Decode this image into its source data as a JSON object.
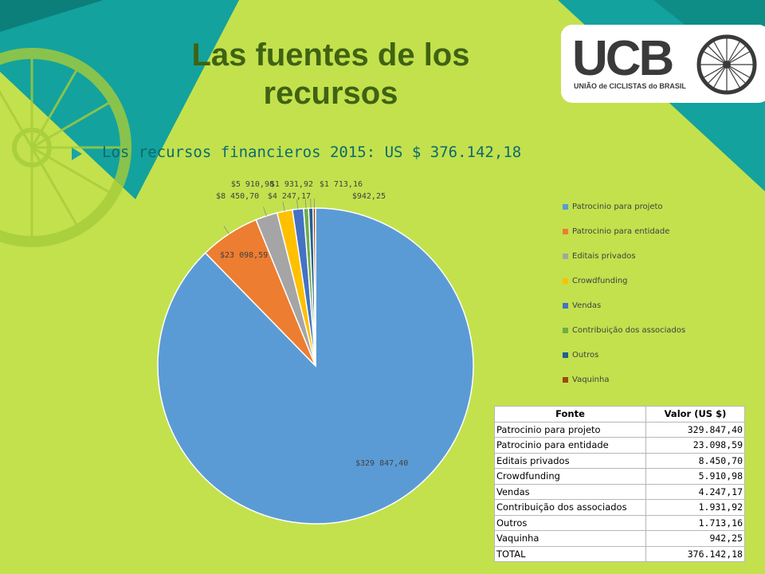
{
  "slide": {
    "title": "Las fuentes de los recursos",
    "bullet": "Los recursos financieros 2015: US $ 376.142,18"
  },
  "logo": {
    "text": "UCB",
    "subtitle": "UNIÃO de CICLISTAS do BRASIL",
    "icon": "bicycle-wheel-icon"
  },
  "colors": {
    "background": "#c3e14d",
    "teal": "#13a29e",
    "title": "#3f6212"
  },
  "chart_data": {
    "type": "pie",
    "title": "",
    "categories": [
      "Patrocinio para projeto",
      "Patrocinio para entidade",
      "Editais privados",
      "Crowdfunding",
      "Vendas",
      "Contribuição dos associados",
      "Outros",
      "Vaquinha"
    ],
    "values": [
      329847.4,
      23098.59,
      8450.7,
      5910.98,
      4247.17,
      1931.92,
      1713.16,
      942.25
    ],
    "data_labels": [
      "$329 847,40",
      "$23 098,59",
      "$8 450,70",
      "$5 910,98",
      "$4 247,17",
      "$1 931,92",
      "$1 713,16",
      "$942,25"
    ],
    "colors": [
      "#5b9bd5",
      "#ed7d31",
      "#a5a5a5",
      "#ffc000",
      "#4472c4",
      "#70ad47",
      "#255e91",
      "#9e480e"
    ],
    "legend_position": "right"
  },
  "table": {
    "headers": [
      "Fonte",
      "Valor (US $)"
    ],
    "rows": [
      [
        "Patrocinio para projeto",
        "329.847,40"
      ],
      [
        "Patrocinio para entidade",
        "23.098,59"
      ],
      [
        "Editais privados",
        "8.450,70"
      ],
      [
        "Crowdfunding",
        "5.910,98"
      ],
      [
        "Vendas",
        "4.247,17"
      ],
      [
        "Contribuição dos associados",
        "1.931,92"
      ],
      [
        "Outros",
        "1.713,16"
      ],
      [
        "Vaquinha",
        "942,25"
      ],
      [
        "TOTAL",
        "376.142,18"
      ]
    ]
  }
}
